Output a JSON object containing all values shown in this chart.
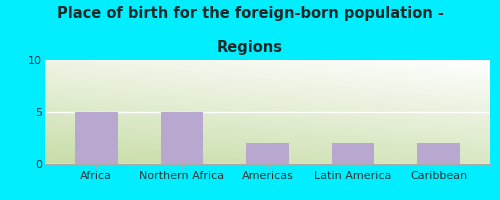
{
  "categories": [
    "Africa",
    "Northern Africa",
    "Americas",
    "Latin America",
    "Caribbean"
  ],
  "values": [
    5,
    5,
    2,
    2,
    2
  ],
  "bar_color": "#b8a8d0",
  "title_line1": "Place of birth for the foreign-born population -",
  "title_line2": "Regions",
  "background_color": "#00eeff",
  "yticks": [
    0,
    5,
    10
  ],
  "ylim": [
    0,
    10
  ],
  "title_fontsize": 10.5,
  "tick_fontsize": 8,
  "title_color": "#1a2a2a"
}
